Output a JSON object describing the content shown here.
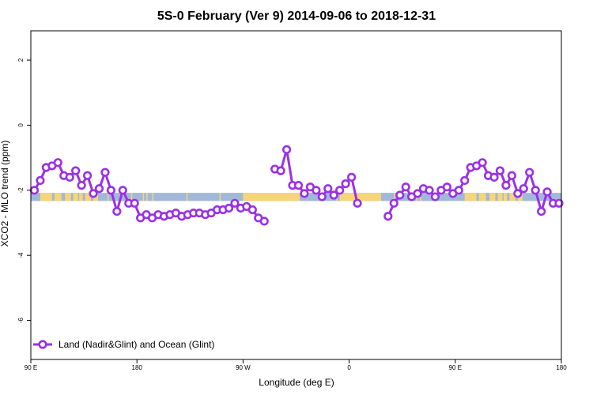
{
  "chart_data": {
    "type": "line",
    "title": "5S-0 February (Ver 9)   2014-09-06 to 2018-12-31",
    "xlabel": "Longitude (deg E)",
    "ylabel": "XCO2 - MLO trend (ppm)",
    "xlim": [
      90,
      540
    ],
    "ylim": [
      -7.2,
      2.9
    ],
    "x_ticks": [
      {
        "value": 90,
        "label": "90 E"
      },
      {
        "value": 180,
        "label": "180"
      },
      {
        "value": 270,
        "label": "90 W"
      },
      {
        "value": 360,
        "label": "0"
      },
      {
        "value": 450,
        "label": "90 E"
      },
      {
        "value": 540,
        "label": "180"
      }
    ],
    "y_ticks": [
      {
        "value": 2,
        "label": "2"
      },
      {
        "value": 0,
        "label": "0"
      },
      {
        "value": -2,
        "label": "-2"
      },
      {
        "value": -4,
        "label": "-4"
      },
      {
        "value": -6,
        "label": "-6"
      }
    ],
    "grid": false,
    "legend_position": "bottom-left",
    "series": [
      {
        "name": "Land (Nadir&Glint) and Ocean (Glint)",
        "color": "#9b30e6",
        "segments": [
          [
            [
              93,
              -2.0
            ],
            [
              98,
              -1.7
            ],
            [
              103,
              -1.3
            ],
            [
              108,
              -1.25
            ],
            [
              113,
              -1.15
            ],
            [
              118,
              -1.55
            ],
            [
              123,
              -1.6
            ],
            [
              128,
              -1.4
            ],
            [
              133,
              -1.85
            ],
            [
              138,
              -1.55
            ],
            [
              143,
              -2.1
            ],
            [
              148,
              -1.95
            ],
            [
              153,
              -1.45
            ],
            [
              158,
              -2.0
            ],
            [
              163,
              -2.65
            ],
            [
              168,
              -2.0
            ],
            [
              173,
              -2.4
            ],
            [
              178,
              -2.4
            ],
            [
              183,
              -2.85
            ],
            [
              188,
              -2.75
            ],
            [
              193,
              -2.85
            ],
            [
              198,
              -2.75
            ],
            [
              203,
              -2.8
            ],
            [
              208,
              -2.75
            ],
            [
              213,
              -2.7
            ],
            [
              218,
              -2.8
            ],
            [
              223,
              -2.75
            ],
            [
              228,
              -2.7
            ],
            [
              233,
              -2.7
            ],
            [
              238,
              -2.75
            ],
            [
              243,
              -2.7
            ],
            [
              248,
              -2.6
            ],
            [
              253,
              -2.6
            ],
            [
              258,
              -2.55
            ],
            [
              263,
              -2.4
            ],
            [
              268,
              -2.55
            ],
            [
              273,
              -2.5
            ],
            [
              278,
              -2.6
            ],
            [
              283,
              -2.85
            ],
            [
              288,
              -2.95
            ]
          ],
          [
            [
              297,
              -1.35
            ],
            [
              302,
              -1.4
            ],
            [
              307,
              -0.75
            ],
            [
              312,
              -1.85
            ],
            [
              317,
              -1.85
            ],
            [
              322,
              -2.1
            ],
            [
              327,
              -1.9
            ],
            [
              332,
              -2.0
            ],
            [
              337,
              -2.2
            ],
            [
              342,
              -1.95
            ],
            [
              347,
              -2.15
            ],
            [
              352,
              -2.0
            ],
            [
              357,
              -1.8
            ],
            [
              362,
              -1.6
            ],
            [
              367,
              -2.4
            ]
          ],
          [
            [
              393,
              -2.8
            ],
            [
              398,
              -2.4
            ],
            [
              403,
              -2.15
            ],
            [
              408,
              -1.9
            ],
            [
              413,
              -2.2
            ],
            [
              418,
              -2.1
            ],
            [
              423,
              -1.95
            ],
            [
              428,
              -2.0
            ],
            [
              433,
              -2.2
            ],
            [
              438,
              -2.0
            ],
            [
              443,
              -1.9
            ],
            [
              448,
              -2.1
            ],
            [
              453,
              -2.0
            ],
            [
              458,
              -1.7
            ],
            [
              463,
              -1.3
            ],
            [
              468,
              -1.25
            ],
            [
              473,
              -1.15
            ],
            [
              478,
              -1.55
            ],
            [
              483,
              -1.6
            ],
            [
              488,
              -1.4
            ],
            [
              493,
              -1.85
            ],
            [
              498,
              -1.55
            ],
            [
              503,
              -2.1
            ],
            [
              508,
              -1.95
            ],
            [
              513,
              -1.45
            ],
            [
              518,
              -2.0
            ],
            [
              523,
              -2.65
            ],
            [
              528,
              -2.05
            ],
            [
              533,
              -2.4
            ],
            [
              538,
              -2.4
            ]
          ]
        ]
      }
    ],
    "surface_band": {
      "y_range": [
        -2.33,
        -2.08
      ],
      "ocean_color": "#a2b8d8",
      "land_color": "#f6d57a",
      "land_spans": [
        [
          98,
          108
        ],
        [
          110,
          116
        ],
        [
          119,
          124
        ],
        [
          126,
          130
        ],
        [
          131,
          134
        ],
        [
          136,
          141
        ],
        [
          143,
          147
        ],
        [
          155,
          156
        ],
        [
          175,
          176
        ],
        [
          185,
          186
        ],
        [
          188,
          189
        ],
        [
          193,
          194
        ],
        [
          222,
          223
        ],
        [
          250,
          251
        ],
        [
          270,
          318
        ],
        [
          349,
          350
        ],
        [
          352,
          387
        ],
        [
          398,
          399
        ],
        [
          400,
          401
        ],
        [
          417,
          418
        ],
        [
          420,
          421
        ],
        [
          458,
          468
        ],
        [
          470,
          476
        ],
        [
          479,
          484
        ],
        [
          486,
          490
        ],
        [
          491,
          494
        ],
        [
          496,
          501
        ],
        [
          503,
          507
        ]
      ]
    }
  }
}
